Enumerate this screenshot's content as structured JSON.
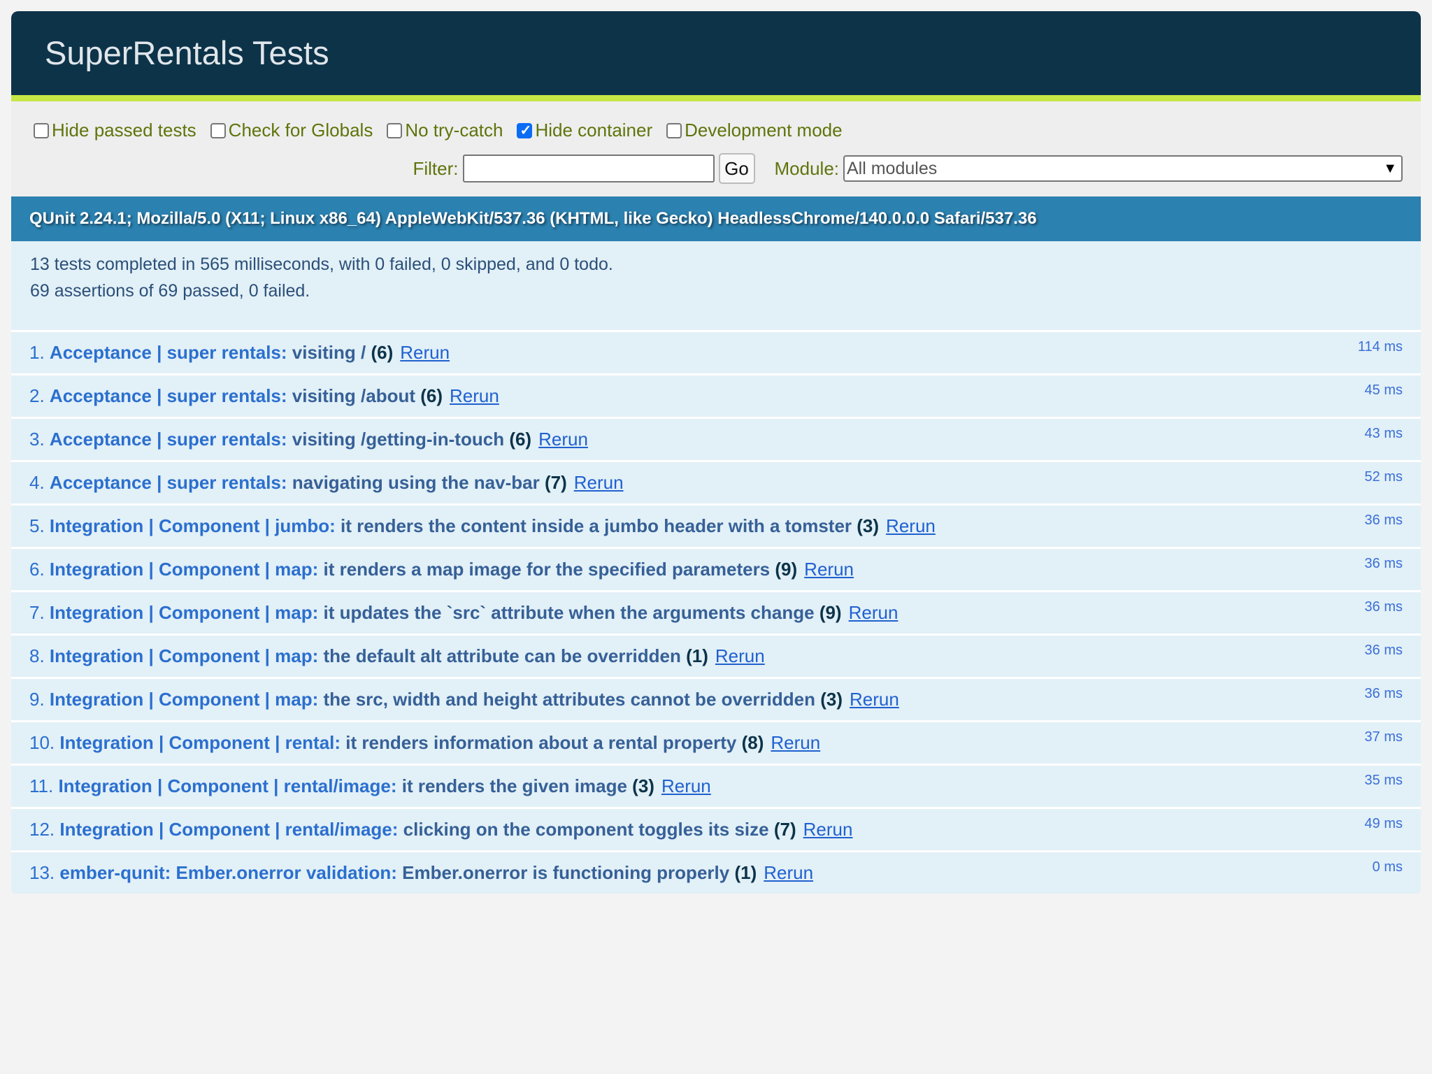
{
  "header": {
    "title": "SuperRentals Tests"
  },
  "toolbar": {
    "options": [
      {
        "label": "Hide passed tests",
        "checked": false
      },
      {
        "label": "Check for Globals",
        "checked": false
      },
      {
        "label": "No try-catch",
        "checked": false
      },
      {
        "label": "Hide container",
        "checked": true
      },
      {
        "label": "Development mode",
        "checked": false
      }
    ],
    "filter_label": "Filter:",
    "filter_value": "",
    "go_label": "Go",
    "module_label": "Module:",
    "module_value": "All modules"
  },
  "banner": "QUnit 2.24.1; Mozilla/5.0 (X11; Linux x86_64) AppleWebKit/537.36 (KHTML, like Gecko) HeadlessChrome/140.0.0.0 Safari/537.36",
  "summary": {
    "line1": "13 tests completed in 565 milliseconds, with 0 failed, 0 skipped, and 0 todo.",
    "line2": "69 assertions of 69 passed, 0 failed."
  },
  "rerun_label": "Rerun",
  "tests": [
    {
      "num": "1.",
      "module": "Acceptance | super rentals:",
      "name": "visiting /",
      "count": "(6)",
      "time": "114 ms"
    },
    {
      "num": "2.",
      "module": "Acceptance | super rentals:",
      "name": "visiting /about",
      "count": "(6)",
      "time": "45 ms"
    },
    {
      "num": "3.",
      "module": "Acceptance | super rentals:",
      "name": "visiting /getting-in-touch",
      "count": "(6)",
      "time": "43 ms"
    },
    {
      "num": "4.",
      "module": "Acceptance | super rentals:",
      "name": "navigating using the nav-bar",
      "count": "(7)",
      "time": "52 ms"
    },
    {
      "num": "5.",
      "module": "Integration | Component | jumbo:",
      "name": "it renders the content inside a jumbo header with a tomster",
      "count": "(3)",
      "time": "36 ms"
    },
    {
      "num": "6.",
      "module": "Integration | Component | map:",
      "name": "it renders a map image for the specified parameters",
      "count": "(9)",
      "time": "36 ms"
    },
    {
      "num": "7.",
      "module": "Integration | Component | map:",
      "name": "it updates the `src` attribute when the arguments change",
      "count": "(9)",
      "time": "36 ms"
    },
    {
      "num": "8.",
      "module": "Integration | Component | map:",
      "name": "the default alt attribute can be overridden",
      "count": "(1)",
      "time": "36 ms"
    },
    {
      "num": "9.",
      "module": "Integration | Component | map:",
      "name": "the src, width and height attributes cannot be overridden",
      "count": "(3)",
      "time": "36 ms"
    },
    {
      "num": "10.",
      "module": "Integration | Component | rental:",
      "name": "it renders information about a rental property",
      "count": "(8)",
      "time": "37 ms"
    },
    {
      "num": "11.",
      "module": "Integration | Component | rental/image:",
      "name": "it renders the given image",
      "count": "(3)",
      "time": "35 ms"
    },
    {
      "num": "12.",
      "module": "Integration | Component | rental/image:",
      "name": "clicking on the component toggles its size",
      "count": "(7)",
      "time": "49 ms"
    },
    {
      "num": "13.",
      "module": "ember-qunit: Ember.onerror validation:",
      "name": "Ember.onerror is functioning properly",
      "count": "(1)",
      "time": "0 ms"
    }
  ]
}
